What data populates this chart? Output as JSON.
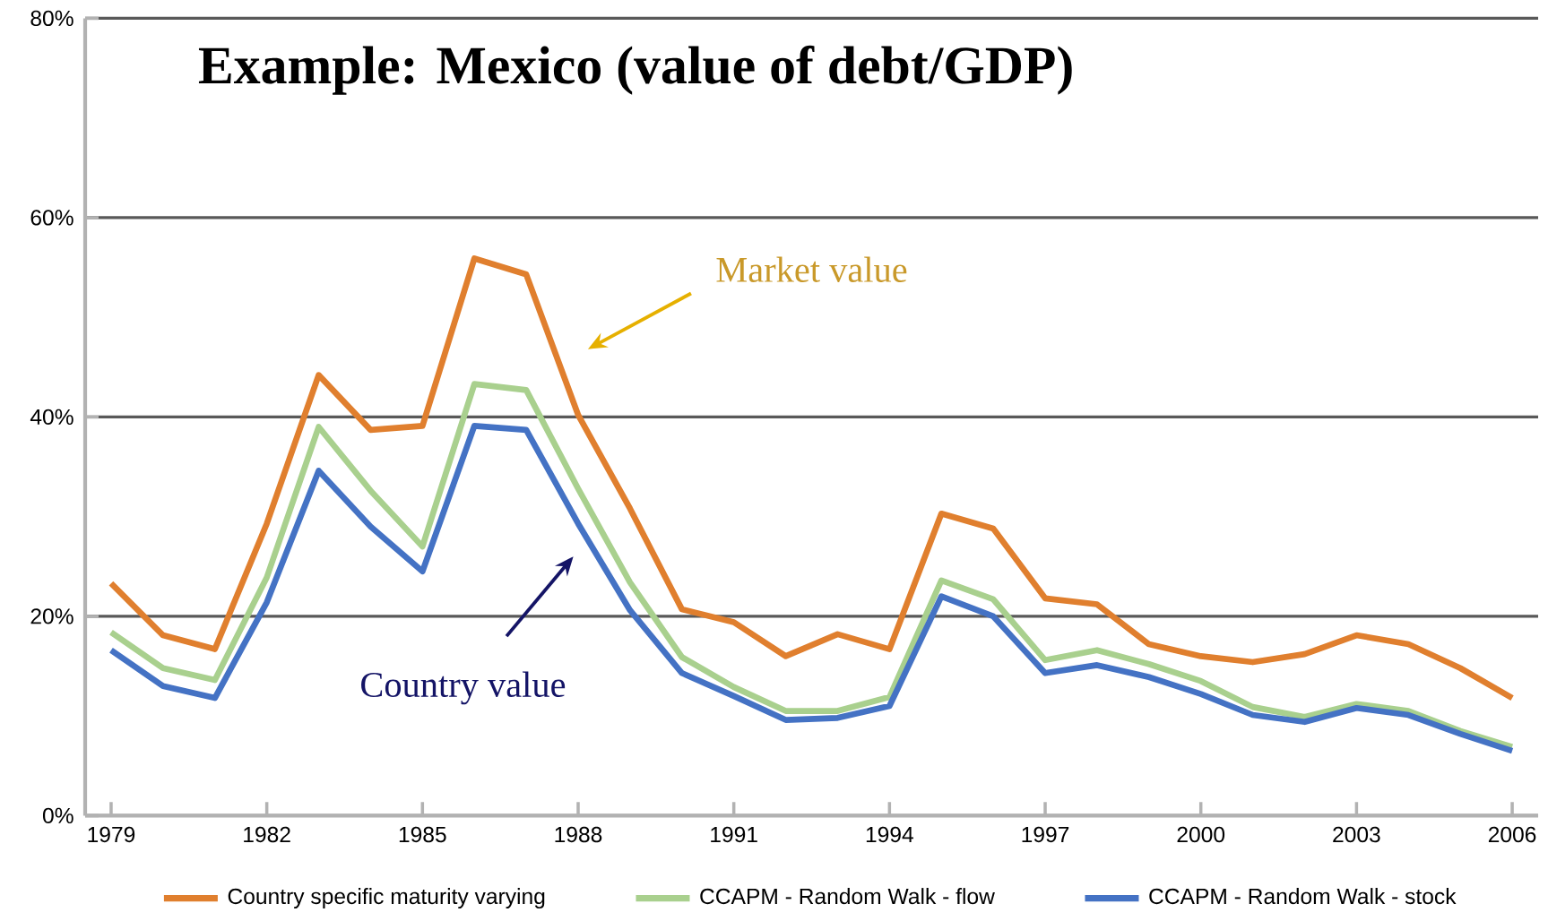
{
  "chart_data": {
    "type": "line",
    "title": "Example: Mexico (value of debt/GDP)",
    "x": [
      1979,
      1980,
      1981,
      1982,
      1983,
      1984,
      1985,
      1986,
      1987,
      1988,
      1989,
      1990,
      1991,
      1992,
      1993,
      1994,
      1995,
      1996,
      1997,
      1998,
      1999,
      2000,
      2001,
      2002,
      2003,
      2004,
      2005,
      2006
    ],
    "series": [
      {
        "name": "Country specific maturity varying",
        "color": "#e07f2e",
        "values": [
          23.3,
          18.1,
          16.7,
          29.3,
          44.2,
          38.7,
          39.1,
          55.9,
          54.3,
          40.2,
          30.8,
          20.7,
          19.4,
          16.0,
          18.2,
          16.7,
          30.3,
          28.8,
          21.8,
          21.2,
          17.2,
          16.0,
          15.4,
          16.2,
          18.1,
          17.2,
          14.8,
          11.8
        ]
      },
      {
        "name": "CCAPM - Random  Walk - flow",
        "color": "#a9d08e",
        "values": [
          18.4,
          14.8,
          13.6,
          23.9,
          39.0,
          32.6,
          27.0,
          43.3,
          42.7,
          32.8,
          23.4,
          15.9,
          12.9,
          10.5,
          10.5,
          11.9,
          23.6,
          21.7,
          15.6,
          16.6,
          15.2,
          13.5,
          10.9,
          9.9,
          11.2,
          10.5,
          8.5,
          6.9
        ]
      },
      {
        "name": "CCAPM - Random  Walk - stock",
        "color": "#4472c4",
        "values": [
          16.6,
          13.0,
          11.8,
          21.4,
          34.6,
          29.0,
          24.5,
          39.1,
          38.7,
          29.3,
          20.6,
          14.3,
          12.0,
          9.6,
          9.8,
          11.0,
          22.0,
          20.0,
          14.3,
          15.1,
          13.9,
          12.2,
          10.1,
          9.4,
          10.8,
          10.1,
          8.2,
          6.5
        ]
      }
    ],
    "xlim": [
      1978.5,
      2006.5
    ],
    "xticks": [
      1979,
      1982,
      1985,
      1988,
      1991,
      1994,
      1997,
      2000,
      2003,
      2006
    ],
    "ylim": [
      0,
      80
    ],
    "yticks": [
      {
        "value": 0,
        "label": "0%"
      },
      {
        "value": 20,
        "label": "20%"
      },
      {
        "value": 40,
        "label": "40%"
      },
      {
        "value": 60,
        "label": "60%"
      },
      {
        "value": 80,
        "label": "80%"
      }
    ],
    "grid": "y",
    "legend": "bottom",
    "marker": "none",
    "line_style": "solid",
    "annotations": [
      "Market value",
      "Country value"
    ]
  }
}
